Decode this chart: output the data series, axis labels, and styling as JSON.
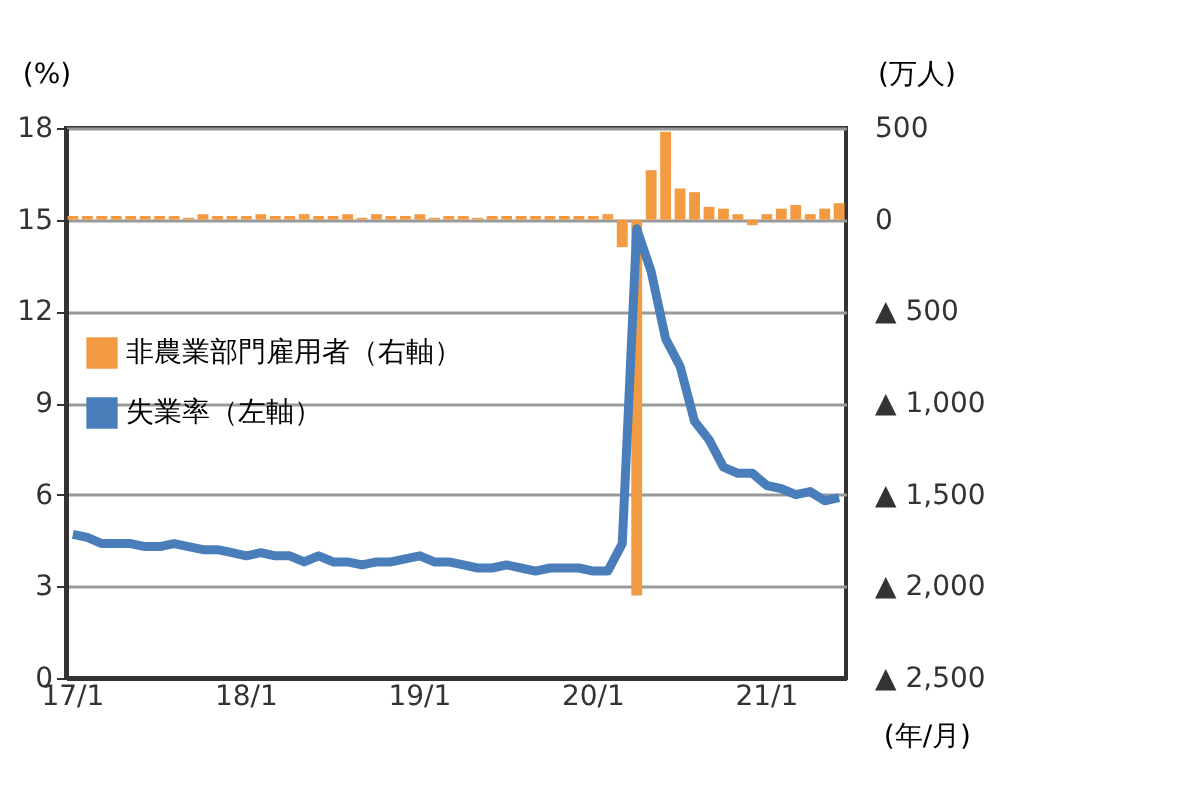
{
  "chart_data": {
    "type": "line",
    "ylabel": "(%)",
    "y2label": "(万人)",
    "xlabel": "(年/月)",
    "categories": [
      "17/1",
      null,
      null,
      null,
      null,
      null,
      null,
      null,
      null,
      null,
      null,
      null,
      "18/1",
      null,
      null,
      null,
      null,
      null,
      null,
      null,
      null,
      null,
      null,
      null,
      "19/1",
      null,
      null,
      null,
      null,
      null,
      null,
      null,
      null,
      null,
      null,
      null,
      "20/1",
      null,
      null,
      null,
      null,
      null,
      null,
      null,
      null,
      null,
      null,
      null,
      "21/1",
      null,
      null,
      null,
      null,
      null
    ],
    "series": [
      {
        "name": "非農業部門雇用者（右軸）",
        "type": "bar",
        "axis": "y2",
        "color": "#f29b43",
        "values": [
          20,
          20,
          20,
          20,
          20,
          20,
          20,
          20,
          10,
          30,
          20,
          20,
          20,
          30,
          20,
          20,
          30,
          20,
          20,
          30,
          10,
          30,
          20,
          20,
          30,
          10,
          20,
          20,
          10,
          20,
          20,
          20,
          20,
          20,
          20,
          20,
          20,
          30,
          -150,
          -2050,
          270,
          480,
          170,
          150,
          70,
          60,
          30,
          -30,
          30,
          60,
          80,
          30,
          60,
          90
        ]
      },
      {
        "name": "失業率（左軸）",
        "color": "#4a7ebb",
        "values": [
          4.7,
          4.6,
          4.4,
          4.4,
          4.4,
          4.3,
          4.3,
          4.4,
          4.3,
          4.2,
          4.2,
          4.1,
          4.0,
          4.1,
          4.0,
          4.0,
          3.8,
          4.0,
          3.8,
          3.8,
          3.7,
          3.8,
          3.8,
          3.9,
          4.0,
          3.8,
          3.8,
          3.7,
          3.6,
          3.6,
          3.7,
          3.6,
          3.5,
          3.6,
          3.6,
          3.6,
          3.5,
          3.5,
          4.4,
          14.7,
          13.3,
          11.1,
          10.2,
          8.4,
          7.8,
          6.9,
          6.7,
          6.7,
          6.3,
          6.2,
          6.0,
          6.1,
          5.8,
          5.9
        ]
      }
    ],
    "ylim": [
      0,
      18
    ],
    "yticks": [
      0,
      3,
      6,
      9,
      12,
      15,
      18
    ],
    "y2lim": [
      -2500,
      500
    ],
    "y2ticks": [
      500,
      0,
      {
        "value": -500,
        "label": "▲ 500"
      },
      {
        "value": -1000,
        "label": "▲ 1,000"
      },
      {
        "value": -1500,
        "label": "▲ 1,500"
      },
      {
        "value": -2000,
        "label": "▲ 2,000"
      },
      {
        "value": -2500,
        "label": "▲ 2,500"
      }
    ],
    "grid": "y",
    "legend": "left",
    "marker": "none",
    "line_style": "solid"
  }
}
